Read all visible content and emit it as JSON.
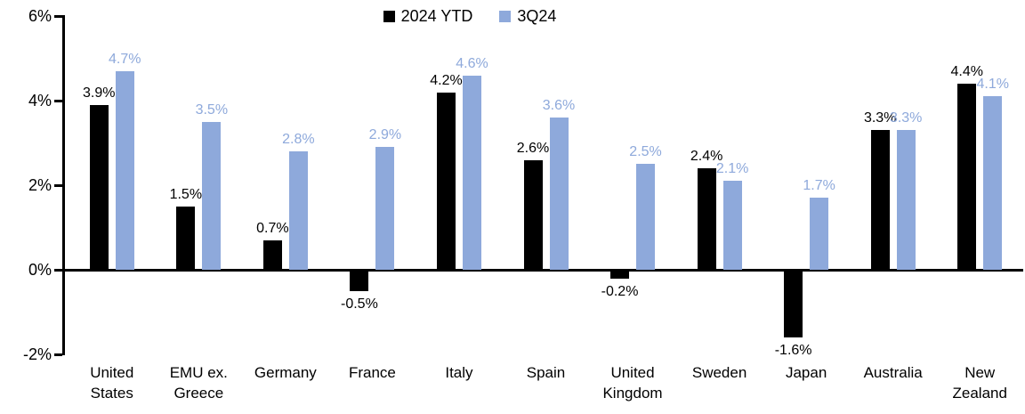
{
  "legend": {
    "items": [
      {
        "label": "2024 YTD",
        "color": "#000000"
      },
      {
        "label": "3Q24",
        "color": "#8EA9DB"
      }
    ]
  },
  "chart_data": {
    "type": "bar",
    "categories": [
      "United States",
      "EMU ex. Greece",
      "Germany",
      "France",
      "Italy",
      "Spain",
      "United Kingdom",
      "Sweden",
      "Japan",
      "Australia",
      "New Zealand"
    ],
    "series": [
      {
        "name": "2024 YTD",
        "color": "#000000",
        "values": [
          3.9,
          1.5,
          0.7,
          -0.5,
          4.2,
          2.6,
          -0.2,
          2.4,
          -1.6,
          3.3,
          4.4
        ],
        "data_labels": [
          "3.9%",
          "1.5%",
          "0.7%",
          "-0.5%",
          "4.2%",
          "2.6%",
          "-0.2%",
          "2.4%",
          "-1.6%",
          "3.3%",
          "4.4%"
        ]
      },
      {
        "name": "3Q24",
        "color": "#8EA9DB",
        "values": [
          4.7,
          3.5,
          2.8,
          2.9,
          4.6,
          3.6,
          2.5,
          2.1,
          1.7,
          3.3,
          4.1
        ],
        "data_labels": [
          "4.7%",
          "3.5%",
          "2.8%",
          "2.9%",
          "4.6%",
          "3.6%",
          "2.5%",
          "2.1%",
          "1.7%",
          "3.3%",
          "4.1%"
        ]
      }
    ],
    "y_axis": {
      "ticks": [
        "6%",
        "4%",
        "2%",
        "0%",
        "-2%"
      ],
      "tick_values": [
        6,
        4,
        2,
        0,
        -2
      ],
      "ylim": [
        -2,
        6
      ]
    },
    "title": "",
    "xlabel": "",
    "ylabel": "",
    "grid": false,
    "legend_position": "top-center"
  }
}
